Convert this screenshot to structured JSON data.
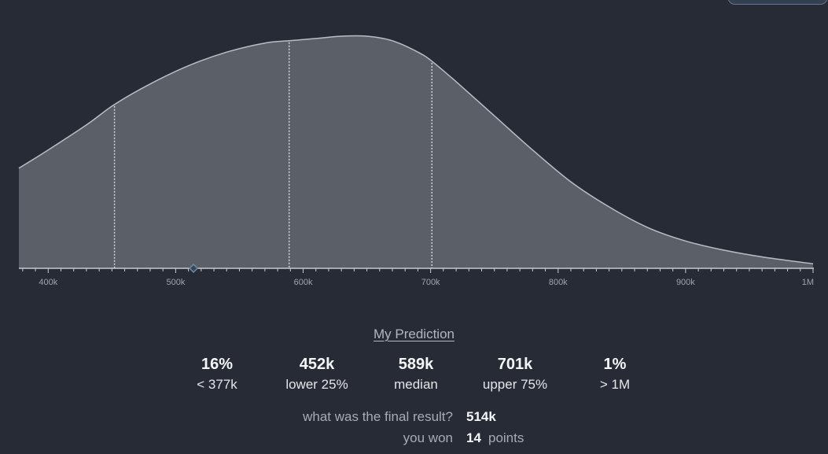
{
  "chart_data": {
    "type": "area",
    "x_scale": "linear",
    "xlim": [
      377000,
      1000000
    ],
    "x_ticks": [
      {
        "value": 400000,
        "label": "400k"
      },
      {
        "value": 500000,
        "label": "500k"
      },
      {
        "value": 600000,
        "label": "600k"
      },
      {
        "value": 700000,
        "label": "700k"
      },
      {
        "value": 800000,
        "label": "800k"
      },
      {
        "value": 900000,
        "label": "900k"
      },
      {
        "value": 1000000,
        "label": "1M"
      }
    ],
    "minor_tick_step": 10000,
    "density_curve": {
      "x": [
        377000,
        400000,
        430000,
        452000,
        480000,
        510000,
        540000,
        570000,
        589000,
        610000,
        630000,
        650000,
        670000,
        690000,
        701000,
        720000,
        750000,
        780000,
        810000,
        840000,
        870000,
        900000,
        930000,
        960000,
        1000000
      ],
      "y": [
        0.44,
        0.52,
        0.63,
        0.72,
        0.81,
        0.89,
        0.95,
        0.99,
        1.0,
        1.01,
        1.02,
        1.02,
        1.0,
        0.95,
        0.91,
        0.82,
        0.67,
        0.52,
        0.38,
        0.27,
        0.18,
        0.12,
        0.08,
        0.05,
        0.02
      ]
    },
    "quantile_markers": [
      452000,
      589000,
      701000
    ],
    "final_result_marker": 514000,
    "colors": {
      "background": "#262b36",
      "area_fill": "#5a5f68",
      "curve_stroke": "#b9bdc4",
      "marker_line": "#d2d5da",
      "axis": "#c8cbd0",
      "tick_label": "#9fa3aa",
      "result_marker": "#6f8aa8"
    }
  },
  "prediction": {
    "title": "My Prediction",
    "stats": [
      {
        "value": "16%",
        "label": "< 377k"
      },
      {
        "value": "452k",
        "label": "lower 25%"
      },
      {
        "value": "589k",
        "label": "median"
      },
      {
        "value": "701k",
        "label": "upper 75%"
      },
      {
        "value": "1%",
        "label": "> 1M"
      }
    ],
    "final_result_label": "what was the final result?",
    "final_result_value": "514k",
    "points_label": "you won",
    "points_value": "14",
    "points_unit": "points"
  }
}
